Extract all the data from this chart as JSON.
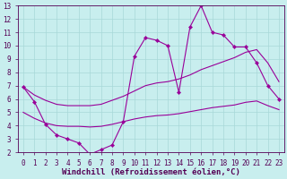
{
  "xlabel": "Windchill (Refroidissement éolien,°C)",
  "ylabel": "",
  "background_color": "#c8eeee",
  "plot_bg_color": "#c8eeee",
  "grid_color": "#a8d8d8",
  "line_color": "#990099",
  "x": [
    0,
    1,
    2,
    3,
    4,
    5,
    6,
    7,
    8,
    9,
    10,
    11,
    12,
    13,
    14,
    15,
    16,
    17,
    18,
    19,
    20,
    21,
    22,
    23
  ],
  "y_main": [
    6.9,
    5.8,
    4.1,
    3.3,
    3.0,
    2.7,
    1.85,
    2.2,
    2.55,
    4.3,
    9.2,
    10.6,
    10.4,
    10.0,
    6.5,
    11.4,
    13.0,
    11.0,
    10.8,
    9.9,
    9.9,
    8.7,
    7.0,
    6.0
  ],
  "y_upper": [
    6.9,
    6.3,
    5.9,
    5.6,
    5.5,
    5.5,
    5.5,
    5.6,
    5.9,
    6.2,
    6.6,
    7.0,
    7.2,
    7.3,
    7.5,
    7.8,
    8.2,
    8.5,
    8.8,
    9.1,
    9.5,
    9.7,
    8.7,
    7.3
  ],
  "y_lower": [
    5.0,
    4.55,
    4.2,
    4.0,
    3.95,
    3.95,
    3.9,
    3.95,
    4.1,
    4.3,
    4.5,
    4.65,
    4.75,
    4.8,
    4.9,
    5.05,
    5.2,
    5.35,
    5.45,
    5.55,
    5.75,
    5.85,
    5.5,
    5.2
  ],
  "xlim": [
    -0.5,
    23.5
  ],
  "ylim": [
    2,
    13
  ],
  "yticks": [
    2,
    3,
    4,
    5,
    6,
    7,
    8,
    9,
    10,
    11,
    12,
    13
  ],
  "xticks": [
    0,
    1,
    2,
    3,
    4,
    5,
    6,
    7,
    8,
    9,
    10,
    11,
    12,
    13,
    14,
    15,
    16,
    17,
    18,
    19,
    20,
    21,
    22,
    23
  ],
  "marker": "D",
  "markersize": 2.2,
  "linewidth": 0.8,
  "font_color": "#550055",
  "tick_label_size": 5.5,
  "xlabel_size": 6.5
}
